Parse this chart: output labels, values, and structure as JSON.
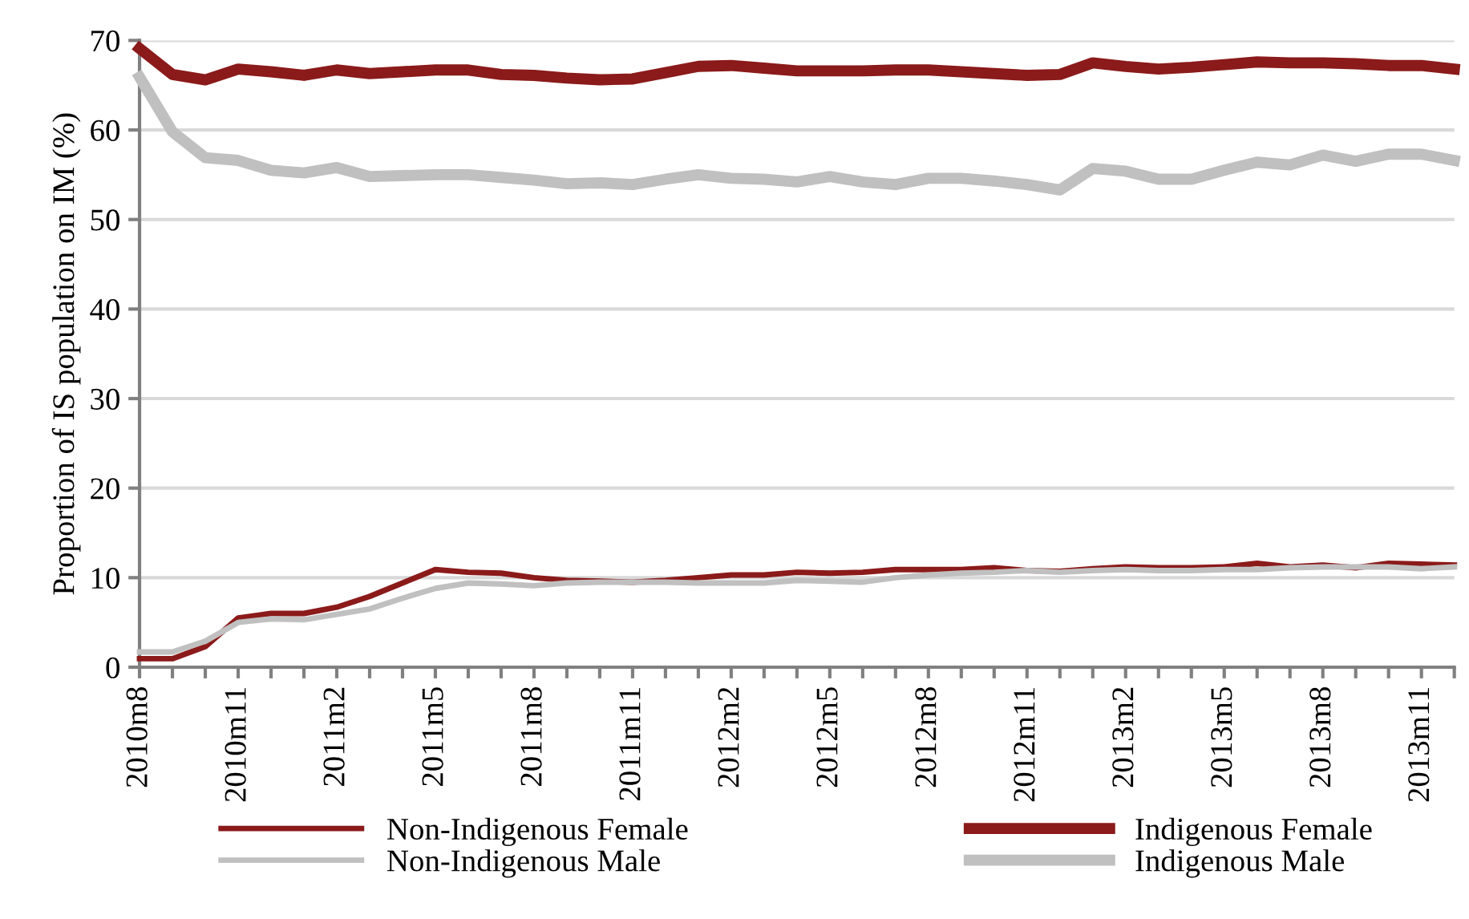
{
  "chart_data": {
    "type": "line",
    "ylabel": "Proportion of IS population on IM (%)",
    "categories": [
      "2010m8",
      null,
      null,
      "2010m11",
      null,
      null,
      "2011m2",
      null,
      null,
      "2011m5",
      null,
      null,
      "2011m8",
      null,
      null,
      "2011m11",
      null,
      null,
      "2012m2",
      null,
      null,
      "2012m5",
      null,
      null,
      "2012m8",
      null,
      null,
      "2012m11",
      null,
      null,
      "2013m2",
      null,
      null,
      "2013m5",
      null,
      null,
      "2013m8",
      null,
      null,
      "2013m11",
      null
    ],
    "series": [
      {
        "name": "Non-Indigenous Female",
        "color": "#8b1a1a",
        "values": [
          0.95,
          0.95,
          2.3,
          5.5,
          6.0,
          6.0,
          6.7,
          7.9,
          9.4,
          10.9,
          10.6,
          10.5,
          10.0,
          9.7,
          9.6,
          9.5,
          9.7,
          10.0,
          10.3,
          10.3,
          10.6,
          10.5,
          10.6,
          10.9,
          10.9,
          10.9,
          11.1,
          10.8,
          10.7,
          11.0,
          11.2,
          11.1,
          11.1,
          11.2,
          11.6,
          11.2,
          11.4,
          11.1,
          11.6,
          11.5,
          11.4
        ]
      },
      {
        "name": "Indigenous Female",
        "color": "#8b1a1a",
        "values": [
          69.1,
          66.2,
          65.6,
          66.8,
          66.5,
          66.1,
          66.7,
          66.3,
          66.5,
          66.7,
          66.7,
          66.2,
          66.1,
          65.8,
          65.6,
          65.7,
          66.4,
          67.1,
          67.2,
          66.9,
          66.6,
          66.6,
          66.6,
          66.7,
          66.7,
          66.5,
          66.3,
          66.1,
          66.2,
          67.5,
          67.1,
          66.8,
          67.0,
          67.3,
          67.6,
          67.5,
          67.5,
          67.4,
          67.2,
          67.2,
          66.8
        ]
      },
      {
        "name": "Non-Indigenous Male",
        "color": "#c0c0c0",
        "values": [
          1.7,
          1.7,
          2.9,
          5.0,
          5.4,
          5.3,
          5.9,
          6.5,
          7.7,
          8.8,
          9.4,
          9.3,
          9.1,
          9.4,
          9.5,
          9.5,
          9.5,
          9.4,
          9.4,
          9.4,
          9.7,
          9.6,
          9.5,
          10.0,
          10.3,
          10.5,
          10.6,
          10.8,
          10.6,
          10.8,
          10.9,
          10.8,
          10.8,
          10.9,
          10.9,
          11.1,
          11.2,
          11.2,
          11.2,
          11.0,
          11.2
        ]
      },
      {
        "name": "Indigenous Male",
        "color": "#c0c0c0",
        "values": [
          65.9,
          59.8,
          56.9,
          56.6,
          55.5,
          55.2,
          55.8,
          54.8,
          54.9,
          55.0,
          55.0,
          54.7,
          54.4,
          54.0,
          54.1,
          53.9,
          54.5,
          55.0,
          54.6,
          54.5,
          54.2,
          54.8,
          54.2,
          53.9,
          54.6,
          54.6,
          54.3,
          53.9,
          53.3,
          55.7,
          55.4,
          54.5,
          54.5,
          55.5,
          56.4,
          56.1,
          57.2,
          56.5,
          57.3,
          57.3,
          56.6
        ]
      }
    ],
    "ylim": [
      0,
      70
    ],
    "yticks": [
      0,
      10,
      20,
      30,
      40,
      50,
      60,
      70
    ],
    "grid": "y",
    "legend": "bottom",
    "marker": "none",
    "line_style": "solid"
  }
}
